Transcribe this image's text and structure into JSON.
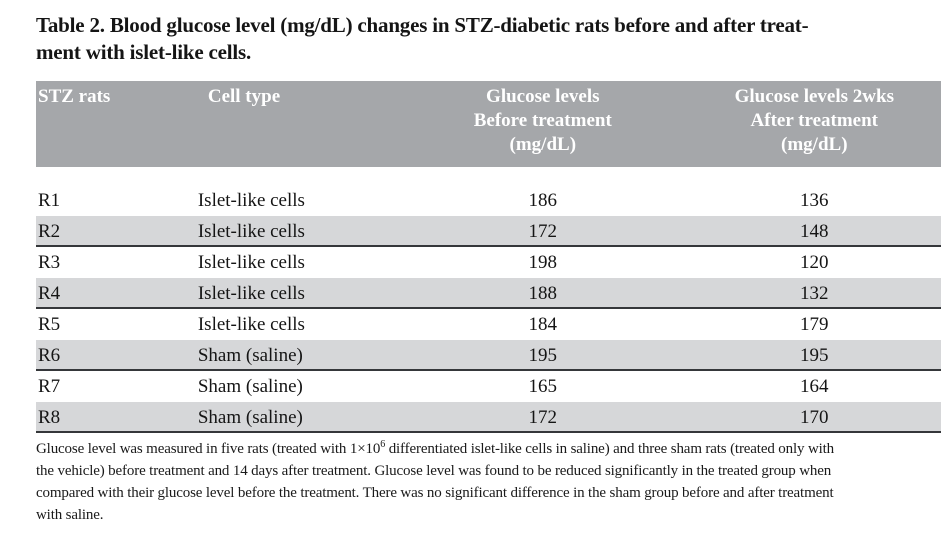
{
  "title": {
    "lines": [
      "Table 2. Blood glucose level (mg/dL) changes in STZ-diabetic rats before and after treat-",
      "ment with islet-like cells."
    ]
  },
  "table": {
    "columns": [
      {
        "label_lines": [
          "STZ rats"
        ],
        "align": "left"
      },
      {
        "label_lines": [
          "Cell type"
        ],
        "align": "left"
      },
      {
        "label_lines": [
          "Glucose levels",
          "Before treatment",
          "(mg/dL)"
        ],
        "align": "center"
      },
      {
        "label_lines": [
          "Glucose levels 2wks",
          "After treatment",
          "(mg/dL)"
        ],
        "align": "center"
      }
    ],
    "rows": [
      {
        "rat": "R1",
        "cell_type": "Islet-like cells",
        "before": "186",
        "after": "136"
      },
      {
        "rat": "R2",
        "cell_type": "Islet-like cells",
        "before": "172",
        "after": "148"
      },
      {
        "rat": "R3",
        "cell_type": "Islet-like cells",
        "before": "198",
        "after": "120"
      },
      {
        "rat": "R4",
        "cell_type": "Islet-like cells",
        "before": "188",
        "after": "132"
      },
      {
        "rat": "R5",
        "cell_type": "Islet-like cells",
        "before": "184",
        "after": "179"
      },
      {
        "rat": "R6",
        "cell_type": "Sham (saline)",
        "before": "195",
        "after": "195"
      },
      {
        "rat": "R7",
        "cell_type": "Sham (saline)",
        "before": "165",
        "after": "164"
      },
      {
        "rat": "R8",
        "cell_type": "Sham (saline)",
        "before": "172",
        "after": "170"
      }
    ]
  },
  "footnote": {
    "lines": [
      [
        {
          "t": "Glucose level was measured in five rats (treated with 1×10"
        },
        {
          "t": "6",
          "sup": true
        },
        {
          "t": " differentiated islet-like cells in saline) and three sham rats (treated only with"
        }
      ],
      [
        {
          "t": "the vehicle) before treatment and 14 days after treatment. Glucose level was found to be reduced significantly in the treated group when"
        }
      ],
      [
        {
          "t": "compared with their glucose level before the treatment. There was no significant difference in the sham group before and after treatment"
        }
      ],
      [
        {
          "t": "with saline."
        }
      ]
    ]
  },
  "colors": {
    "header_bg": "#a5a7aa",
    "row_shaded_bg": "#d6d7d9",
    "rule": "#35373a",
    "header_text": "#ffffff",
    "body_text": "#151515"
  }
}
